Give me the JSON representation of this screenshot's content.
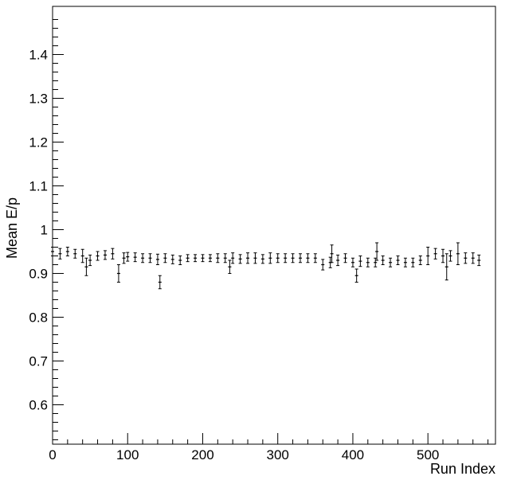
{
  "chart_data": {
    "type": "scatter",
    "title": "",
    "xlabel": "Run Index",
    "ylabel": "Mean E/p",
    "xlim": [
      0,
      590
    ],
    "ylim": [
      0.51,
      1.51
    ],
    "xticks": [
      0,
      100,
      200,
      300,
      400,
      500
    ],
    "xtick_labels": [
      "0",
      "100",
      "200",
      "300",
      "400",
      "500"
    ],
    "yticks": [
      0.6,
      0.7,
      0.8,
      0.9,
      1.0,
      1.1,
      1.2,
      1.3,
      1.4
    ],
    "ytick_labels": [
      "0.6",
      "0.7",
      "0.8",
      "0.9",
      "1",
      "1.1",
      "1.2",
      "1.3",
      "1.4"
    ],
    "grid": false,
    "legend": "none",
    "series": [
      {
        "x": [
          0,
          10,
          20,
          30,
          40,
          45,
          50,
          60,
          70,
          80,
          88,
          95,
          100,
          110,
          120,
          130,
          140,
          143,
          150,
          160,
          170,
          180,
          190,
          200,
          210,
          220,
          230,
          236,
          240,
          250,
          260,
          270,
          280,
          290,
          300,
          310,
          320,
          330,
          340,
          350,
          360,
          370,
          372,
          380,
          390,
          400,
          405,
          410,
          420,
          430,
          432,
          440,
          450,
          460,
          470,
          480,
          490,
          500,
          510,
          520,
          525,
          530,
          540,
          550,
          560,
          568
        ],
        "values": [
          0.95,
          0.945,
          0.95,
          0.945,
          0.94,
          0.915,
          0.93,
          0.94,
          0.942,
          0.945,
          0.9,
          0.935,
          0.938,
          0.937,
          0.935,
          0.935,
          0.932,
          0.88,
          0.935,
          0.932,
          0.93,
          0.935,
          0.935,
          0.935,
          0.935,
          0.935,
          0.935,
          0.915,
          0.935,
          0.933,
          0.935,
          0.935,
          0.933,
          0.935,
          0.935,
          0.935,
          0.935,
          0.935,
          0.935,
          0.935,
          0.92,
          0.925,
          0.945,
          0.93,
          0.935,
          0.925,
          0.895,
          0.928,
          0.925,
          0.925,
          0.95,
          0.93,
          0.925,
          0.93,
          0.925,
          0.925,
          0.93,
          0.94,
          0.945,
          0.94,
          0.915,
          0.94,
          0.945,
          0.935,
          0.935,
          0.93
        ],
        "errors": [
          0.01,
          0.012,
          0.01,
          0.01,
          0.015,
          0.02,
          0.012,
          0.01,
          0.01,
          0.012,
          0.02,
          0.012,
          0.01,
          0.01,
          0.01,
          0.01,
          0.012,
          0.015,
          0.01,
          0.01,
          0.01,
          0.008,
          0.008,
          0.008,
          0.008,
          0.01,
          0.01,
          0.015,
          0.012,
          0.01,
          0.012,
          0.012,
          0.01,
          0.012,
          0.01,
          0.01,
          0.01,
          0.01,
          0.01,
          0.01,
          0.012,
          0.012,
          0.02,
          0.012,
          0.01,
          0.01,
          0.015,
          0.012,
          0.01,
          0.01,
          0.02,
          0.01,
          0.01,
          0.01,
          0.01,
          0.01,
          0.01,
          0.02,
          0.012,
          0.015,
          0.03,
          0.012,
          0.025,
          0.012,
          0.012,
          0.012
        ]
      }
    ]
  }
}
